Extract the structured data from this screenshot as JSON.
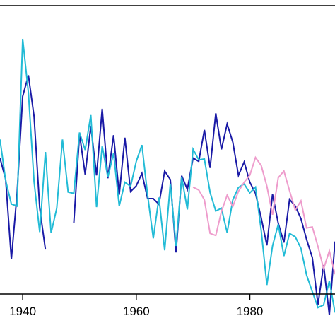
{
  "chart_data": {
    "type": "line",
    "xlim": [
      1936,
      1995
    ],
    "ylim": [
      0,
      100
    ],
    "x_ticks": [
      1940,
      1960,
      1980
    ],
    "x_tick_labels": [
      "1940",
      "1960",
      "1980"
    ],
    "grid": false,
    "legend": "none",
    "series": [
      {
        "color": "#1a1aa6",
        "segments": [
          {
            "x": [
              1936,
              1937,
              1938,
              1939,
              1940,
              1941,
              1942,
              1943,
              1944
            ],
            "y": [
              47.4,
              39.2,
              8.5,
              33.6,
              71.1,
              79.2,
              63.4,
              28.1,
              12.2
            ]
          },
          {
            "x": [
              1949,
              1950,
              1951,
              1952,
              1953,
              1954,
              1955,
              1956,
              1957,
              1958,
              1959,
              1960,
              1961,
              1962,
              1963,
              1964,
              1965,
              1966,
              1967,
              1968,
              1969,
              1970,
              1971,
              1972,
              1973,
              1974,
              1975,
              1976,
              1977,
              1978,
              1979,
              1980,
              1981,
              1982,
              1983,
              1984,
              1985,
              1986,
              1987,
              1988,
              1989,
              1990,
              1991,
              1992,
              1993,
              1994,
              1995
            ],
            "y": [
              22.3,
              56.6,
              41.1,
              59.7,
              40.7,
              66.3,
              39.6,
              56.2,
              33.3,
              55.2,
              34.5,
              36.7,
              41.5,
              31.8,
              31.8,
              29.6,
              42.4,
              39.1,
              11.1,
              40.6,
              35.3,
              47.4,
              46.1,
              58.2,
              43.6,
              64.6,
              50.7,
              60.5,
              53.5,
              40.7,
              45.9,
              38.1,
              33.8,
              24.4,
              13.8,
              33.4,
              22.3,
              14.9,
              31.5,
              28.9,
              24.1,
              16.1,
              9.1,
              -8.9,
              6.2,
              -13.0,
              15.3
            ]
          }
        ]
      },
      {
        "color": "#22bbd6",
        "segments": [
          {
            "x": [
              1936,
              1937,
              1938,
              1939,
              1940,
              1941,
              1942,
              1943,
              1944,
              1945,
              1946,
              1947,
              1948,
              1949,
              1950,
              1951,
              1952,
              1953,
              1954,
              1955,
              1956,
              1957,
              1958,
              1959,
              1960,
              1961,
              1962,
              1963,
              1964,
              1965,
              1966,
              1967,
              1968,
              1969,
              1970,
              1971,
              1972,
              1973,
              1974,
              1975,
              1976,
              1977,
              1978,
              1979,
              1980,
              1981,
              1982,
              1983,
              1984,
              1985,
              1986,
              1987,
              1988,
              1989,
              1990,
              1991,
              1992,
              1993,
              1994,
              1995
            ],
            "y": [
              54.5,
              38.8,
              29.7,
              28.9,
              93.2,
              72.5,
              38.3,
              18.9,
              49.7,
              18.6,
              28.1,
              54.5,
              34.3,
              33.8,
              57.2,
              50.5,
              63.9,
              28.5,
              52.0,
              40.0,
              49.3,
              28.9,
              38.1,
              36.5,
              46.1,
              52.4,
              33.1,
              16.5,
              32.2,
              11.9,
              37.5,
              13.6,
              40.0,
              27.6,
              50.8,
              46.7,
              47.0,
              34.1,
              27.0,
              28.1,
              18.7,
              31.3,
              36.1,
              37.4,
              34.0,
              36.2,
              19.6,
              -1.4,
              13.6,
              21.9,
              9.7,
              18.4,
              17.1,
              12.7,
              2.4,
              -4.0,
              -10.1,
              -9.1,
              0.2,
              -12.0
            ]
          }
        ]
      },
      {
        "color": "#ee9ccc",
        "segments": [
          {
            "x": [
              1970,
              1971,
              1972,
              1973,
              1974,
              1975,
              1976,
              1977,
              1978,
              1979,
              1980,
              1981,
              1982,
              1983,
              1984,
              1985,
              1986,
              1987,
              1988,
              1989,
              1990,
              1991,
              1992,
              1993,
              1994,
              1995
            ],
            "y": [
              36.2,
              35.1,
              31.3,
              18.4,
              17.6,
              26.8,
              33.1,
              28.7,
              34.6,
              38.1,
              40.8,
              47.6,
              44.5,
              36.6,
              25.6,
              39.8,
              42.4,
              34.8,
              27.4,
              30.9,
              20.5,
              20.9,
              13.4,
              4.8,
              11.7,
              2.7
            ]
          }
        ]
      }
    ]
  }
}
